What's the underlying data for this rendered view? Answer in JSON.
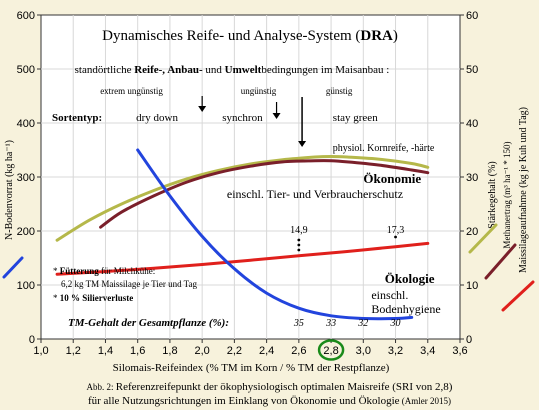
{
  "chart_data": {
    "type": "line",
    "title_prefix": "Dynamisches Reife- und Analyse-System (",
    "title_bold": "DRA",
    "title_suffix": ")",
    "subtitle": {
      "prefix": "standörtliche ",
      "bold1": "Reife-, Anbau-",
      "mid": " und ",
      "bold2": "Umwelt",
      "suffix": "bedingungen im Maisanbau :"
    },
    "conditions": [
      "extrem ungünstig",
      "ungünstig",
      "günstig"
    ],
    "sortentyp_label": "Sortentyp:",
    "sortentypen": [
      "dry down",
      "synchron",
      "stay green"
    ],
    "physiol_label": "physiol. Kornreife, -härte",
    "oekonomie": {
      "title": "Ökonomie",
      "sub": "einschl. Tier- und Verbraucherschutz"
    },
    "oekologie": {
      "title": "Ökologie",
      "sub1": "einschl.",
      "sub2": "Bodenhygiene"
    },
    "note_fuetterung": {
      "star": "* ",
      "bold": "Fütterung",
      "rest": " für Milchkühe:"
    },
    "note_line2": "6,2 kg TM Maissilage je Tier und Tag",
    "note_silier": {
      "star": "* ",
      "bold": "10 % Silierverluste"
    },
    "tm_label": "TM-Gehalt der Gesamtpflanze (%):",
    "tm_values": [
      {
        "x": 2.6,
        "label": "35"
      },
      {
        "x": 2.8,
        "label": "33"
      },
      {
        "x": 3.0,
        "label": "32"
      },
      {
        "x": 3.2,
        "label": "30"
      }
    ],
    "value_labels": [
      {
        "x": 2.6,
        "y": 188,
        "label": "14,9"
      },
      {
        "x": 3.2,
        "y": 205,
        "label": "17,3"
      }
    ],
    "xlabel": "Silomais-Reifeindex (% TM im Korn / % TM der Restpflanze)",
    "ylabel_left": "N-Bodenvorrat (kg ha⁻¹)",
    "ylabel_right1": "Stärkegehalt (%)",
    "ylabel_right2": "Methanertrag (m³ ha⁻¹ * 150)",
    "ylabel_right3": "Maissilageaufnahme (kg je Kuh und Tag)",
    "xlim": [
      1.0,
      3.6
    ],
    "ylim_left": [
      0,
      600
    ],
    "ylim_right": [
      0,
      60
    ],
    "x_ticks": [
      "1,0",
      "1,2",
      "1,4",
      "1,6",
      "1,8",
      "2,0",
      "2,2",
      "2,4",
      "2,6",
      "2,8",
      "3,0",
      "3,2",
      "3,4",
      "3,6"
    ],
    "y_left_ticks": [
      "0",
      "100",
      "200",
      "300",
      "400",
      "500",
      "600"
    ],
    "y_right_ticks": [
      "0",
      "10",
      "20",
      "30",
      "40",
      "50",
      "60"
    ],
    "highlight_x": 2.8,
    "highlight_label": "2,8",
    "series": [
      {
        "name": "Stärkegehalt (%)",
        "color": "#b5b84a",
        "x": [
          1.1,
          1.3,
          1.5,
          1.7,
          1.9,
          2.1,
          2.3,
          2.5,
          2.7,
          2.8,
          2.9,
          3.1,
          3.3,
          3.4
        ],
        "y": [
          183,
          220,
          250,
          275,
          296,
          312,
          324,
          332,
          337,
          338,
          337,
          333,
          325,
          318
        ]
      },
      {
        "name": "Methanertrag (m³ ha⁻¹ * 150)",
        "color": "#7a1f2a",
        "x": [
          1.37,
          1.5,
          1.7,
          1.9,
          2.1,
          2.3,
          2.5,
          2.7,
          2.8,
          2.9,
          3.1,
          3.3,
          3.4
        ],
        "y": [
          207,
          235,
          265,
          290,
          308,
          320,
          328,
          330,
          330,
          328,
          322,
          313,
          308
        ]
      },
      {
        "name": "Maissilageaufnahme (kg je Kuh und Tag)",
        "color": "#e0201c",
        "x": [
          1.1,
          1.4,
          1.7,
          2.0,
          2.3,
          2.6,
          2.9,
          3.2,
          3.4
        ],
        "y": [
          120,
          125,
          131,
          138,
          146,
          154,
          162,
          171,
          177
        ]
      },
      {
        "name": "N-Bodenvorrat (kg ha⁻¹)",
        "color": "#2244dd",
        "x": [
          1.6,
          1.8,
          2.0,
          2.2,
          2.4,
          2.6,
          2.8,
          3.0,
          3.2,
          3.3
        ],
        "y": [
          350,
          265,
          190,
          130,
          85,
          57,
          43,
          38,
          38,
          40
        ]
      }
    ]
  },
  "caption": {
    "line1_prefix": "Abb. 2: ",
    "line1": "Referenzreifepunkt der ökophysiologisch optimalen Maisreife (SRI von 2,8)",
    "line2": "für alle Nutzungsrichtungen im Einklang von Ökonomie und Ökologie",
    "line2_suffix": " (Amler 2015)"
  }
}
